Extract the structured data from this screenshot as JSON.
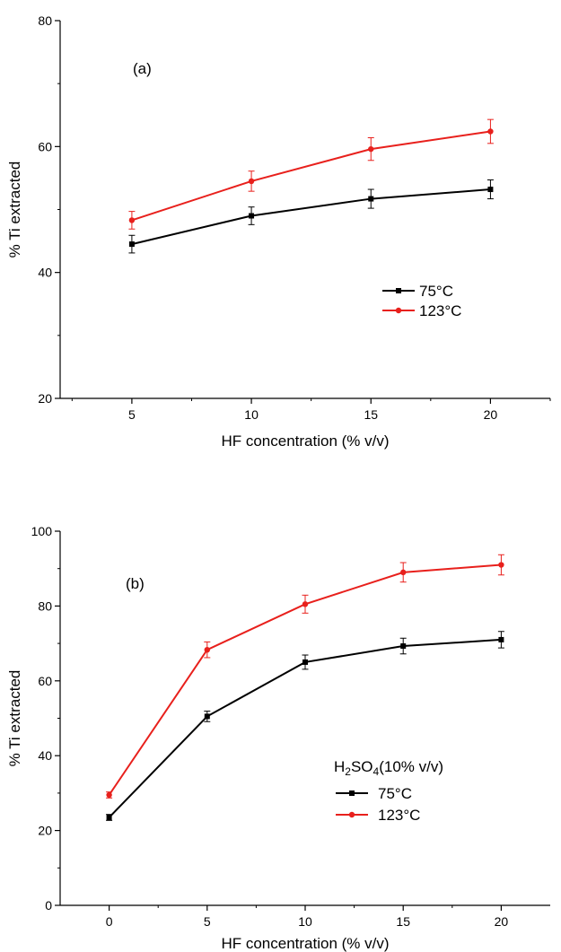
{
  "chart_data": [
    {
      "type": "line",
      "panel_label": "(a)",
      "xlabel": "HF concentration (% v/v)",
      "ylabel": "% Ti extracted",
      "xlim": [
        2,
        22.5
      ],
      "ylim": [
        20,
        80
      ],
      "x_ticks": [
        5,
        10,
        15,
        20
      ],
      "y_ticks": [
        20,
        40,
        60,
        80
      ],
      "x_minor_ticks": [
        2.5,
        7.5,
        12.5,
        17.5,
        22.5
      ],
      "y_minor_ticks": [
        30,
        50,
        70
      ],
      "x": [
        5,
        10,
        15,
        20
      ],
      "series": [
        {
          "name": "75°C",
          "color": "#000000",
          "marker": "square",
          "values": [
            44.5,
            49.0,
            51.7,
            53.2
          ],
          "errors": [
            1.4,
            1.4,
            1.5,
            1.5
          ]
        },
        {
          "name": "123°C",
          "color": "#e8201c",
          "marker": "circle",
          "values": [
            48.3,
            54.5,
            59.6,
            62.4
          ],
          "errors": [
            1.4,
            1.6,
            1.8,
            1.9
          ]
        }
      ],
      "legend_title": "",
      "legend_position": "lower-right"
    },
    {
      "type": "line",
      "panel_label": "(b)",
      "xlabel": "HF concentration (% v/v)",
      "ylabel": "% Ti extracted",
      "xlim": [
        -2.5,
        22.5
      ],
      "ylim": [
        0,
        100
      ],
      "x_ticks": [
        0,
        5,
        10,
        15,
        20
      ],
      "y_ticks": [
        0,
        20,
        40,
        60,
        80,
        100
      ],
      "x_minor_ticks": [
        2.5,
        7.5,
        12.5,
        17.5
      ],
      "y_minor_ticks": [
        10,
        30,
        50,
        70,
        90
      ],
      "x": [
        0,
        5,
        10,
        15,
        20
      ],
      "series": [
        {
          "name": "75°C",
          "color": "#000000",
          "marker": "square",
          "values": [
            23.5,
            50.5,
            65.0,
            69.3,
            71.0
          ],
          "errors": [
            0.8,
            1.4,
            1.9,
            2.1,
            2.2
          ]
        },
        {
          "name": "123°C",
          "color": "#e8201c",
          "marker": "circle",
          "values": [
            29.5,
            68.3,
            80.5,
            89.0,
            91.0
          ],
          "errors": [
            0.8,
            2.1,
            2.4,
            2.6,
            2.7
          ]
        }
      ],
      "legend_title": "H2SO4(10% v/v)",
      "legend_position": "lower-right"
    }
  ]
}
